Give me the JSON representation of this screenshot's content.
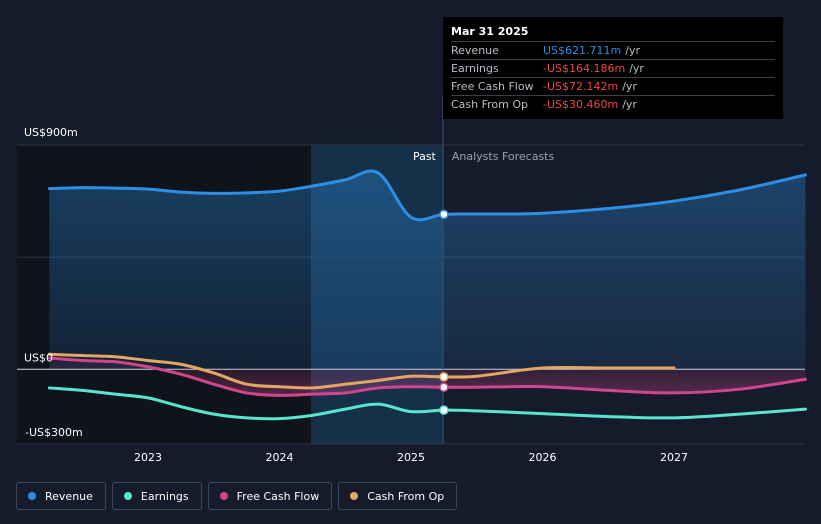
{
  "chart_data": {
    "type": "line",
    "y_axis_labels": [
      "US$900m",
      "US$0",
      "-US$300m"
    ],
    "ylim": [
      -300,
      900
    ],
    "x_ticks": [
      {
        "label": "2023",
        "x": 2023.0
      },
      {
        "label": "2024",
        "x": 2024.0
      },
      {
        "label": "2025",
        "x": 2025.0
      },
      {
        "label": "2026",
        "x": 2026.0
      },
      {
        "label": "2027",
        "x": 2027.0
      }
    ],
    "past_label": "Past",
    "forecast_label": "Analysts Forecasts",
    "divider_x": 2025.25,
    "series": [
      {
        "name": "Revenue",
        "color": "#2d8fe3",
        "points": [
          [
            2022.25,
            725
          ],
          [
            2022.5,
            729
          ],
          [
            2022.75,
            727
          ],
          [
            2023.0,
            723
          ],
          [
            2023.25,
            711
          ],
          [
            2023.5,
            706
          ],
          [
            2023.75,
            708
          ],
          [
            2024.0,
            715
          ],
          [
            2024.25,
            735
          ],
          [
            2024.5,
            760
          ],
          [
            2024.75,
            788
          ],
          [
            2025.0,
            610
          ],
          [
            2025.25,
            621.7
          ],
          [
            2025.5,
            623
          ],
          [
            2025.75,
            623
          ],
          [
            2026.0,
            626
          ],
          [
            2026.5,
            645
          ],
          [
            2027.0,
            675
          ],
          [
            2027.5,
            720
          ],
          [
            2028.0,
            780
          ]
        ]
      },
      {
        "name": "Earnings",
        "color": "#58e6cc",
        "points": [
          [
            2022.25,
            -75
          ],
          [
            2022.5,
            -85
          ],
          [
            2022.75,
            -100
          ],
          [
            2023.0,
            -115
          ],
          [
            2023.25,
            -150
          ],
          [
            2023.5,
            -180
          ],
          [
            2023.75,
            -195
          ],
          [
            2024.0,
            -198
          ],
          [
            2024.25,
            -185
          ],
          [
            2024.5,
            -160
          ],
          [
            2024.75,
            -140
          ],
          [
            2025.0,
            -170
          ],
          [
            2025.25,
            -164.2
          ],
          [
            2025.5,
            -167
          ],
          [
            2026.0,
            -178
          ],
          [
            2026.5,
            -190
          ],
          [
            2027.0,
            -195
          ],
          [
            2027.5,
            -180
          ],
          [
            2028.0,
            -160
          ]
        ]
      },
      {
        "name": "Free Cash Flow",
        "color": "#d0468c",
        "points": [
          [
            2022.25,
            45
          ],
          [
            2022.5,
            35
          ],
          [
            2022.75,
            30
          ],
          [
            2023.0,
            10
          ],
          [
            2023.25,
            -20
          ],
          [
            2023.5,
            -60
          ],
          [
            2023.75,
            -95
          ],
          [
            2024.0,
            -105
          ],
          [
            2024.25,
            -100
          ],
          [
            2024.5,
            -95
          ],
          [
            2024.75,
            -75
          ],
          [
            2025.0,
            -70
          ],
          [
            2025.25,
            -72.1
          ],
          [
            2025.5,
            -72
          ],
          [
            2026.0,
            -70
          ],
          [
            2026.5,
            -85
          ],
          [
            2027.0,
            -95
          ],
          [
            2027.5,
            -80
          ],
          [
            2028.0,
            -40
          ]
        ]
      },
      {
        "name": "Cash From Op",
        "color": "#e2a665",
        "points": [
          [
            2022.25,
            60
          ],
          [
            2022.5,
            55
          ],
          [
            2022.75,
            50
          ],
          [
            2023.0,
            35
          ],
          [
            2023.25,
            20
          ],
          [
            2023.5,
            -15
          ],
          [
            2023.75,
            -60
          ],
          [
            2024.0,
            -70
          ],
          [
            2024.25,
            -75
          ],
          [
            2024.5,
            -60
          ],
          [
            2024.75,
            -45
          ],
          [
            2025.0,
            -28
          ],
          [
            2025.25,
            -30.5
          ],
          [
            2025.5,
            -28
          ],
          [
            2026.0,
            5
          ],
          [
            2026.5,
            5
          ],
          [
            2027.0,
            5
          ]
        ]
      }
    ]
  },
  "tooltip": {
    "date": "Mar 31 2025",
    "rows": [
      {
        "name": "Revenue",
        "value": "US$621.711m",
        "unit": "/yr",
        "color": "#2d8fe3"
      },
      {
        "name": "Earnings",
        "value": "-US$164.186m",
        "unit": "/yr",
        "color": "#ef4848"
      },
      {
        "name": "Free Cash Flow",
        "value": "-US$72.142m",
        "unit": "/yr",
        "color": "#ef4848"
      },
      {
        "name": "Cash From Op",
        "value": "-US$30.460m",
        "unit": "/yr",
        "color": "#ef4848"
      }
    ]
  },
  "legend": [
    {
      "label": "Revenue",
      "color": "#2d8fe3"
    },
    {
      "label": "Earnings",
      "color": "#58e6cc"
    },
    {
      "label": "Free Cash Flow",
      "color": "#d0468c"
    },
    {
      "label": "Cash From Op",
      "color": "#e2a665"
    }
  ]
}
